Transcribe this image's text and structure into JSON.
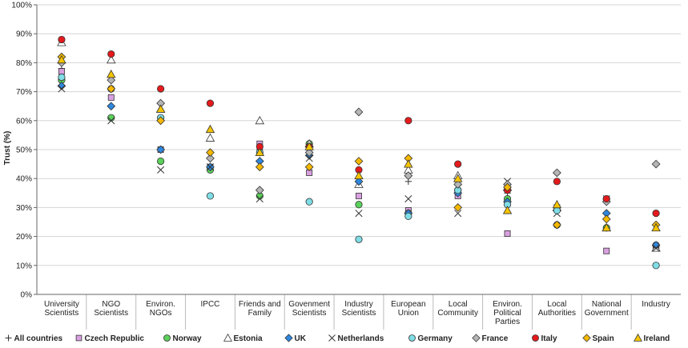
{
  "chart_data": {
    "type": "scatter",
    "title": "",
    "xlabel": "",
    "ylabel": "Trust (%)",
    "ylim": [
      0,
      100
    ],
    "yticks": [
      "0%",
      "10%",
      "20%",
      "30%",
      "40%",
      "50%",
      "60%",
      "70%",
      "80%",
      "90%",
      "100%"
    ],
    "categories": [
      [
        "University",
        "Scientists"
      ],
      [
        "NGO",
        "Scientists"
      ],
      [
        "Environ.",
        "NGOs"
      ],
      [
        "IPCC"
      ],
      [
        "Friends and",
        "Family"
      ],
      [
        "Govenment",
        "Scientists"
      ],
      [
        "Industry",
        "Scientists"
      ],
      [
        "European",
        "Union"
      ],
      [
        "Local",
        "Community"
      ],
      [
        "Environ.",
        "Political",
        "Parties"
      ],
      [
        "Local",
        "Authorities"
      ],
      [
        "National",
        "Government"
      ],
      [
        "Industry"
      ]
    ],
    "series": [
      {
        "name": "All countries",
        "marker": "plus",
        "color": "#222222",
        "values": [
          78,
          71,
          50,
          44,
          50,
          50,
          39,
          39,
          35,
          35,
          30,
          32,
          16
        ]
      },
      {
        "name": "Czech Republic",
        "marker": "square",
        "color": "#d9a0e0",
        "values": [
          77,
          68,
          50,
          44,
          52,
          42,
          34,
          29,
          34,
          21,
          30,
          15,
          16
        ]
      },
      {
        "name": "Norway",
        "marker": "circle",
        "color": "#5ad15a",
        "values": [
          74,
          61,
          46,
          43,
          34,
          52,
          31,
          28,
          36,
          33,
          24,
          23,
          17
        ]
      },
      {
        "name": "Estonia",
        "marker": "triangle-open",
        "color": "#ffffff",
        "values": [
          87,
          81,
          64,
          54,
          60,
          52,
          38,
          43,
          41,
          37,
          30,
          23,
          16
        ]
      },
      {
        "name": "UK",
        "marker": "diamond",
        "color": "#2e86de",
        "values": [
          72,
          65,
          50,
          44,
          46,
          48,
          39,
          28,
          35,
          32,
          29,
          28,
          17
        ]
      },
      {
        "name": "Netherlands",
        "marker": "x",
        "color": "#222222",
        "values": [
          71,
          60,
          43,
          44,
          33,
          47,
          28,
          33,
          28,
          39,
          28,
          33,
          16
        ]
      },
      {
        "name": "Germany",
        "marker": "circle",
        "color": "#7fdde6",
        "values": [
          75,
          71,
          61,
          34,
          49,
          32,
          19,
          27,
          36,
          31,
          29,
          33,
          10
        ]
      },
      {
        "name": "France",
        "marker": "diamond",
        "color": "#b5b5b5",
        "values": [
          80,
          74,
          66,
          47,
          36,
          49,
          63,
          41,
          38,
          38,
          42,
          32,
          45
        ]
      },
      {
        "name": "Italy",
        "marker": "circle",
        "color": "#e41a1c",
        "values": [
          88,
          83,
          71,
          66,
          51,
          51,
          43,
          60,
          45,
          36,
          39,
          33,
          28
        ]
      },
      {
        "name": "Spain",
        "marker": "diamond",
        "color": "#f5b800",
        "values": [
          82,
          71,
          60,
          49,
          44,
          44,
          46,
          47,
          30,
          37,
          24,
          26,
          24
        ]
      },
      {
        "name": "Ireland",
        "marker": "triangle",
        "color": "#f5c400",
        "values": [
          81,
          76,
          64,
          57,
          49,
          51,
          41,
          45,
          40,
          29,
          31,
          23,
          23
        ]
      }
    ]
  }
}
